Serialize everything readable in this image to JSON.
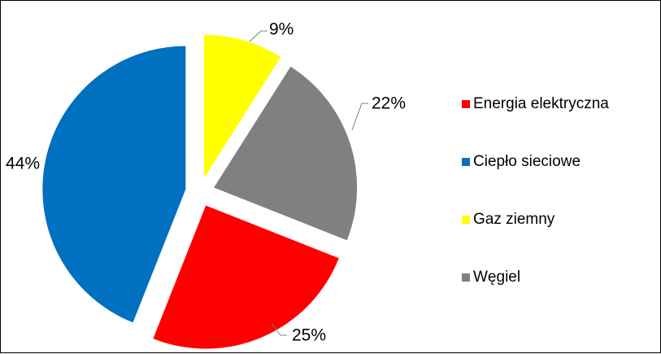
{
  "chart_data": {
    "type": "pie",
    "title": "",
    "exploded": true,
    "legend_position": "right",
    "series": [
      {
        "name": "Energia elektryczna",
        "value": 25,
        "label": "25%",
        "color": "#ff0000"
      },
      {
        "name": "Ciepło sieciowe",
        "value": 44,
        "label": "44%",
        "color": "#0070c0"
      },
      {
        "name": "Gaz ziemny",
        "value": 9,
        "label": "9%",
        "color": "#ffff00"
      },
      {
        "name": "Węgiel",
        "value": 22,
        "label": "22%",
        "color": "#808080"
      }
    ]
  }
}
